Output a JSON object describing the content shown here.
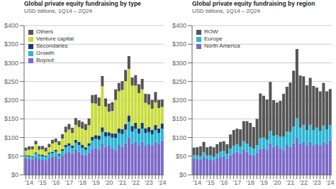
{
  "chart_data": [
    {
      "type": "bar",
      "stacked": true,
      "title": "Global private equity fundraising by type",
      "subtitle": "USD billions, 1Q14 – 2Q24",
      "categories": [
        null,
        "'14",
        null,
        null,
        null,
        "'15",
        null,
        null,
        null,
        "'16",
        null,
        null,
        null,
        "'17",
        null,
        null,
        null,
        "'18",
        null,
        null,
        null,
        "'19",
        null,
        null,
        null,
        "'20",
        null,
        null,
        null,
        "'21",
        null,
        null,
        null,
        "'22",
        null,
        null,
        null,
        "'23",
        null,
        null,
        null,
        "'24"
      ],
      "series": [
        {
          "name": "Buyout",
          "color": "#7b68c8",
          "values": [
            45,
            42,
            40,
            48,
            42,
            40,
            38,
            44,
            48,
            50,
            42,
            52,
            60,
            62,
            58,
            68,
            62,
            55,
            52,
            60,
            70,
            72,
            68,
            85,
            75,
            78,
            72,
            65,
            80,
            75,
            85,
            100,
            82,
            88,
            78,
            88,
            78,
            82,
            78,
            88,
            82,
            92
          ]
        },
        {
          "name": "Growth",
          "color": "#29b6d4",
          "values": [
            6,
            7,
            8,
            9,
            10,
            10,
            10,
            12,
            10,
            12,
            10,
            12,
            14,
            16,
            14,
            18,
            18,
            17,
            15,
            17,
            22,
            24,
            26,
            30,
            28,
            26,
            28,
            34,
            32,
            34,
            36,
            42,
            34,
            36,
            32,
            36,
            34,
            32,
            30,
            32,
            30,
            32
          ]
        },
        {
          "name": "Secondaries",
          "color": "#1a3a6b",
          "values": [
            2,
            3,
            2,
            3,
            3,
            4,
            3,
            4,
            4,
            5,
            4,
            5,
            6,
            7,
            6,
            8,
            8,
            8,
            7,
            8,
            10,
            10,
            11,
            12,
            12,
            10,
            11,
            12,
            12,
            13,
            15,
            17,
            15,
            15,
            14,
            15,
            13,
            14,
            13,
            14,
            12,
            13
          ]
        },
        {
          "name": "Venture capital",
          "color": "#c8dc3c",
          "values": [
            12,
            15,
            18,
            22,
            12,
            14,
            12,
            14,
            22,
            20,
            24,
            28,
            34,
            36,
            34,
            40,
            40,
            44,
            46,
            48,
            90,
            85,
            80,
            110,
            68,
            55,
            60,
            90,
            100,
            105,
            115,
            125,
            108,
            100,
            95,
            90,
            68,
            60,
            56,
            60,
            55,
            45
          ]
        },
        {
          "name": "Others",
          "color": "#555555",
          "values": [
            8,
            9,
            8,
            9,
            10,
            9,
            10,
            9,
            10,
            10,
            10,
            12,
            15,
            15,
            14,
            18,
            18,
            18,
            16,
            18,
            22,
            24,
            22,
            28,
            22,
            22,
            24,
            28,
            22,
            24,
            30,
            34,
            22,
            28,
            24,
            28,
            24,
            28,
            24,
            28,
            22,
            20
          ]
        }
      ],
      "ylim": [
        0,
        400
      ],
      "yticks": [
        {
          "value": 0,
          "label": "$0"
        },
        {
          "value": 50,
          "label": "$50"
        },
        {
          "value": 100,
          "label": "$100"
        },
        {
          "value": 150,
          "label": "$150"
        },
        {
          "value": 200,
          "label": "$200"
        },
        {
          "value": 250,
          "label": "$250"
        },
        {
          "value": 300,
          "label": "$300"
        },
        {
          "value": 350,
          "label": "$350"
        },
        {
          "value": 400,
          "label": "$400"
        }
      ],
      "grid": true,
      "legend": "upper left"
    },
    {
      "type": "bar",
      "stacked": true,
      "title": "Global private equity fundraising by region",
      "subtitle": "USD billions, 1Q14 – 2Q24",
      "categories": [
        null,
        "'14",
        null,
        null,
        null,
        "'15",
        null,
        null,
        null,
        "'16",
        null,
        null,
        null,
        "'17",
        null,
        null,
        null,
        "'18",
        null,
        null,
        null,
        "'19",
        null,
        null,
        null,
        "'20",
        null,
        null,
        null,
        "'21",
        null,
        null,
        null,
        "'22",
        null,
        null,
        null,
        "'23",
        null,
        null,
        null,
        "'24"
      ],
      "series": [
        {
          "name": "North America",
          "color": "#7b68c8",
          "values": [
            45,
            42,
            40,
            48,
            42,
            40,
            38,
            44,
            48,
            50,
            42,
            52,
            60,
            62,
            58,
            68,
            62,
            55,
            52,
            60,
            70,
            72,
            68,
            85,
            75,
            78,
            72,
            65,
            80,
            75,
            85,
            100,
            82,
            88,
            78,
            88,
            78,
            82,
            78,
            88,
            82,
            92
          ]
        },
        {
          "name": "Europe",
          "color": "#29b6d4",
          "values": [
            8,
            10,
            10,
            12,
            10,
            12,
            10,
            12,
            14,
            14,
            14,
            18,
            18,
            20,
            18,
            22,
            22,
            20,
            18,
            20,
            28,
            28,
            26,
            32,
            30,
            28,
            30,
            38,
            36,
            40,
            44,
            52,
            44,
            46,
            42,
            46,
            42,
            44,
            40,
            44,
            40,
            42
          ]
        },
        {
          "name": "ROW",
          "color": "#555555",
          "values": [
            20,
            22,
            26,
            28,
            22,
            24,
            26,
            26,
            26,
            26,
            26,
            38,
            42,
            42,
            46,
            54,
            60,
            64,
            58,
            70,
            120,
            112,
            108,
            132,
            95,
            88,
            96,
            114,
            120,
            132,
            150,
            185,
            140,
            130,
            120,
            126,
            118,
            108,
            106,
            114,
            102,
            96
          ]
        }
      ],
      "ylim": [
        0,
        400
      ],
      "yticks": [
        {
          "value": 0,
          "label": "$0"
        },
        {
          "value": 50,
          "label": "$50"
        },
        {
          "value": 100,
          "label": "$100"
        },
        {
          "value": 150,
          "label": "$150"
        },
        {
          "value": 200,
          "label": "$200"
        },
        {
          "value": 250,
          "label": "$250"
        },
        {
          "value": 300,
          "label": "$300"
        },
        {
          "value": 350,
          "label": "$350"
        },
        {
          "value": 400,
          "label": "$400"
        }
      ],
      "grid": true,
      "legend": "upper left"
    }
  ]
}
